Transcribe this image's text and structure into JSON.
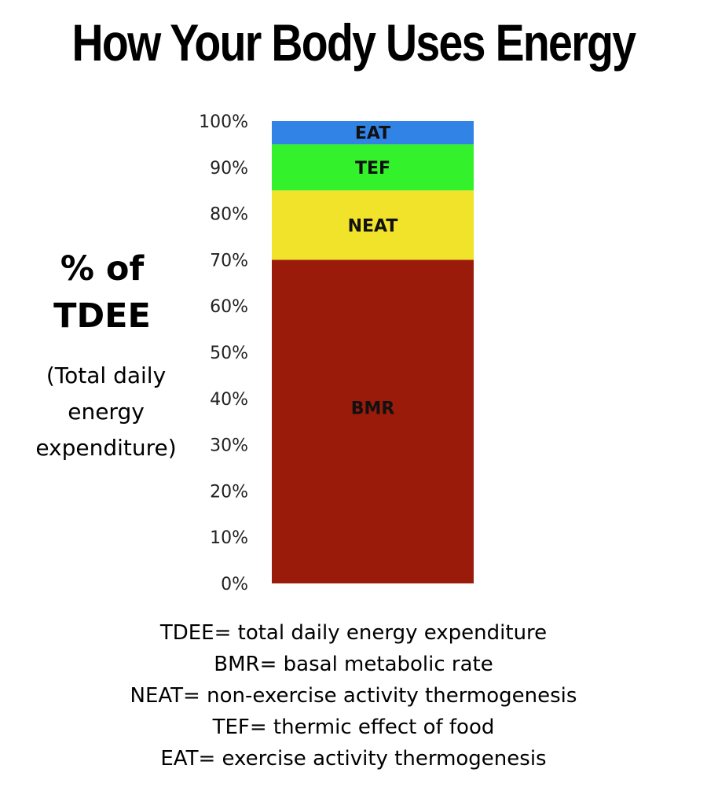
{
  "title": "How Your Body Uses Energy",
  "ylabel_main": "% of\nTDEE",
  "ylabel_sub": "(Total daily\nenergy\nexpenditure)",
  "chart_data": {
    "type": "bar",
    "stacked": true,
    "categories": [
      ""
    ],
    "series": [
      {
        "name": "BMR",
        "values": [
          70
        ],
        "color": "#9b1b0a"
      },
      {
        "name": "NEAT",
        "values": [
          15
        ],
        "color": "#f1e22a"
      },
      {
        "name": "TEF",
        "values": [
          10
        ],
        "color": "#33f22b"
      },
      {
        "name": "EAT",
        "values": [
          5
        ],
        "color": "#3283e6"
      }
    ],
    "ylim": [
      0,
      100
    ],
    "yticks": [
      "0%",
      "10%",
      "20%",
      "30%",
      "40%",
      "50%",
      "60%",
      "70%",
      "80%",
      "90%",
      "100%"
    ],
    "grid": false,
    "legend": "none"
  },
  "legend_lines": [
    "TDEE= total daily energy expenditure",
    "BMR= basal metabolic rate",
    "NEAT= non-exercise activity thermogenesis",
    "TEF= thermic effect of food",
    "EAT= exercise activity thermogenesis"
  ]
}
